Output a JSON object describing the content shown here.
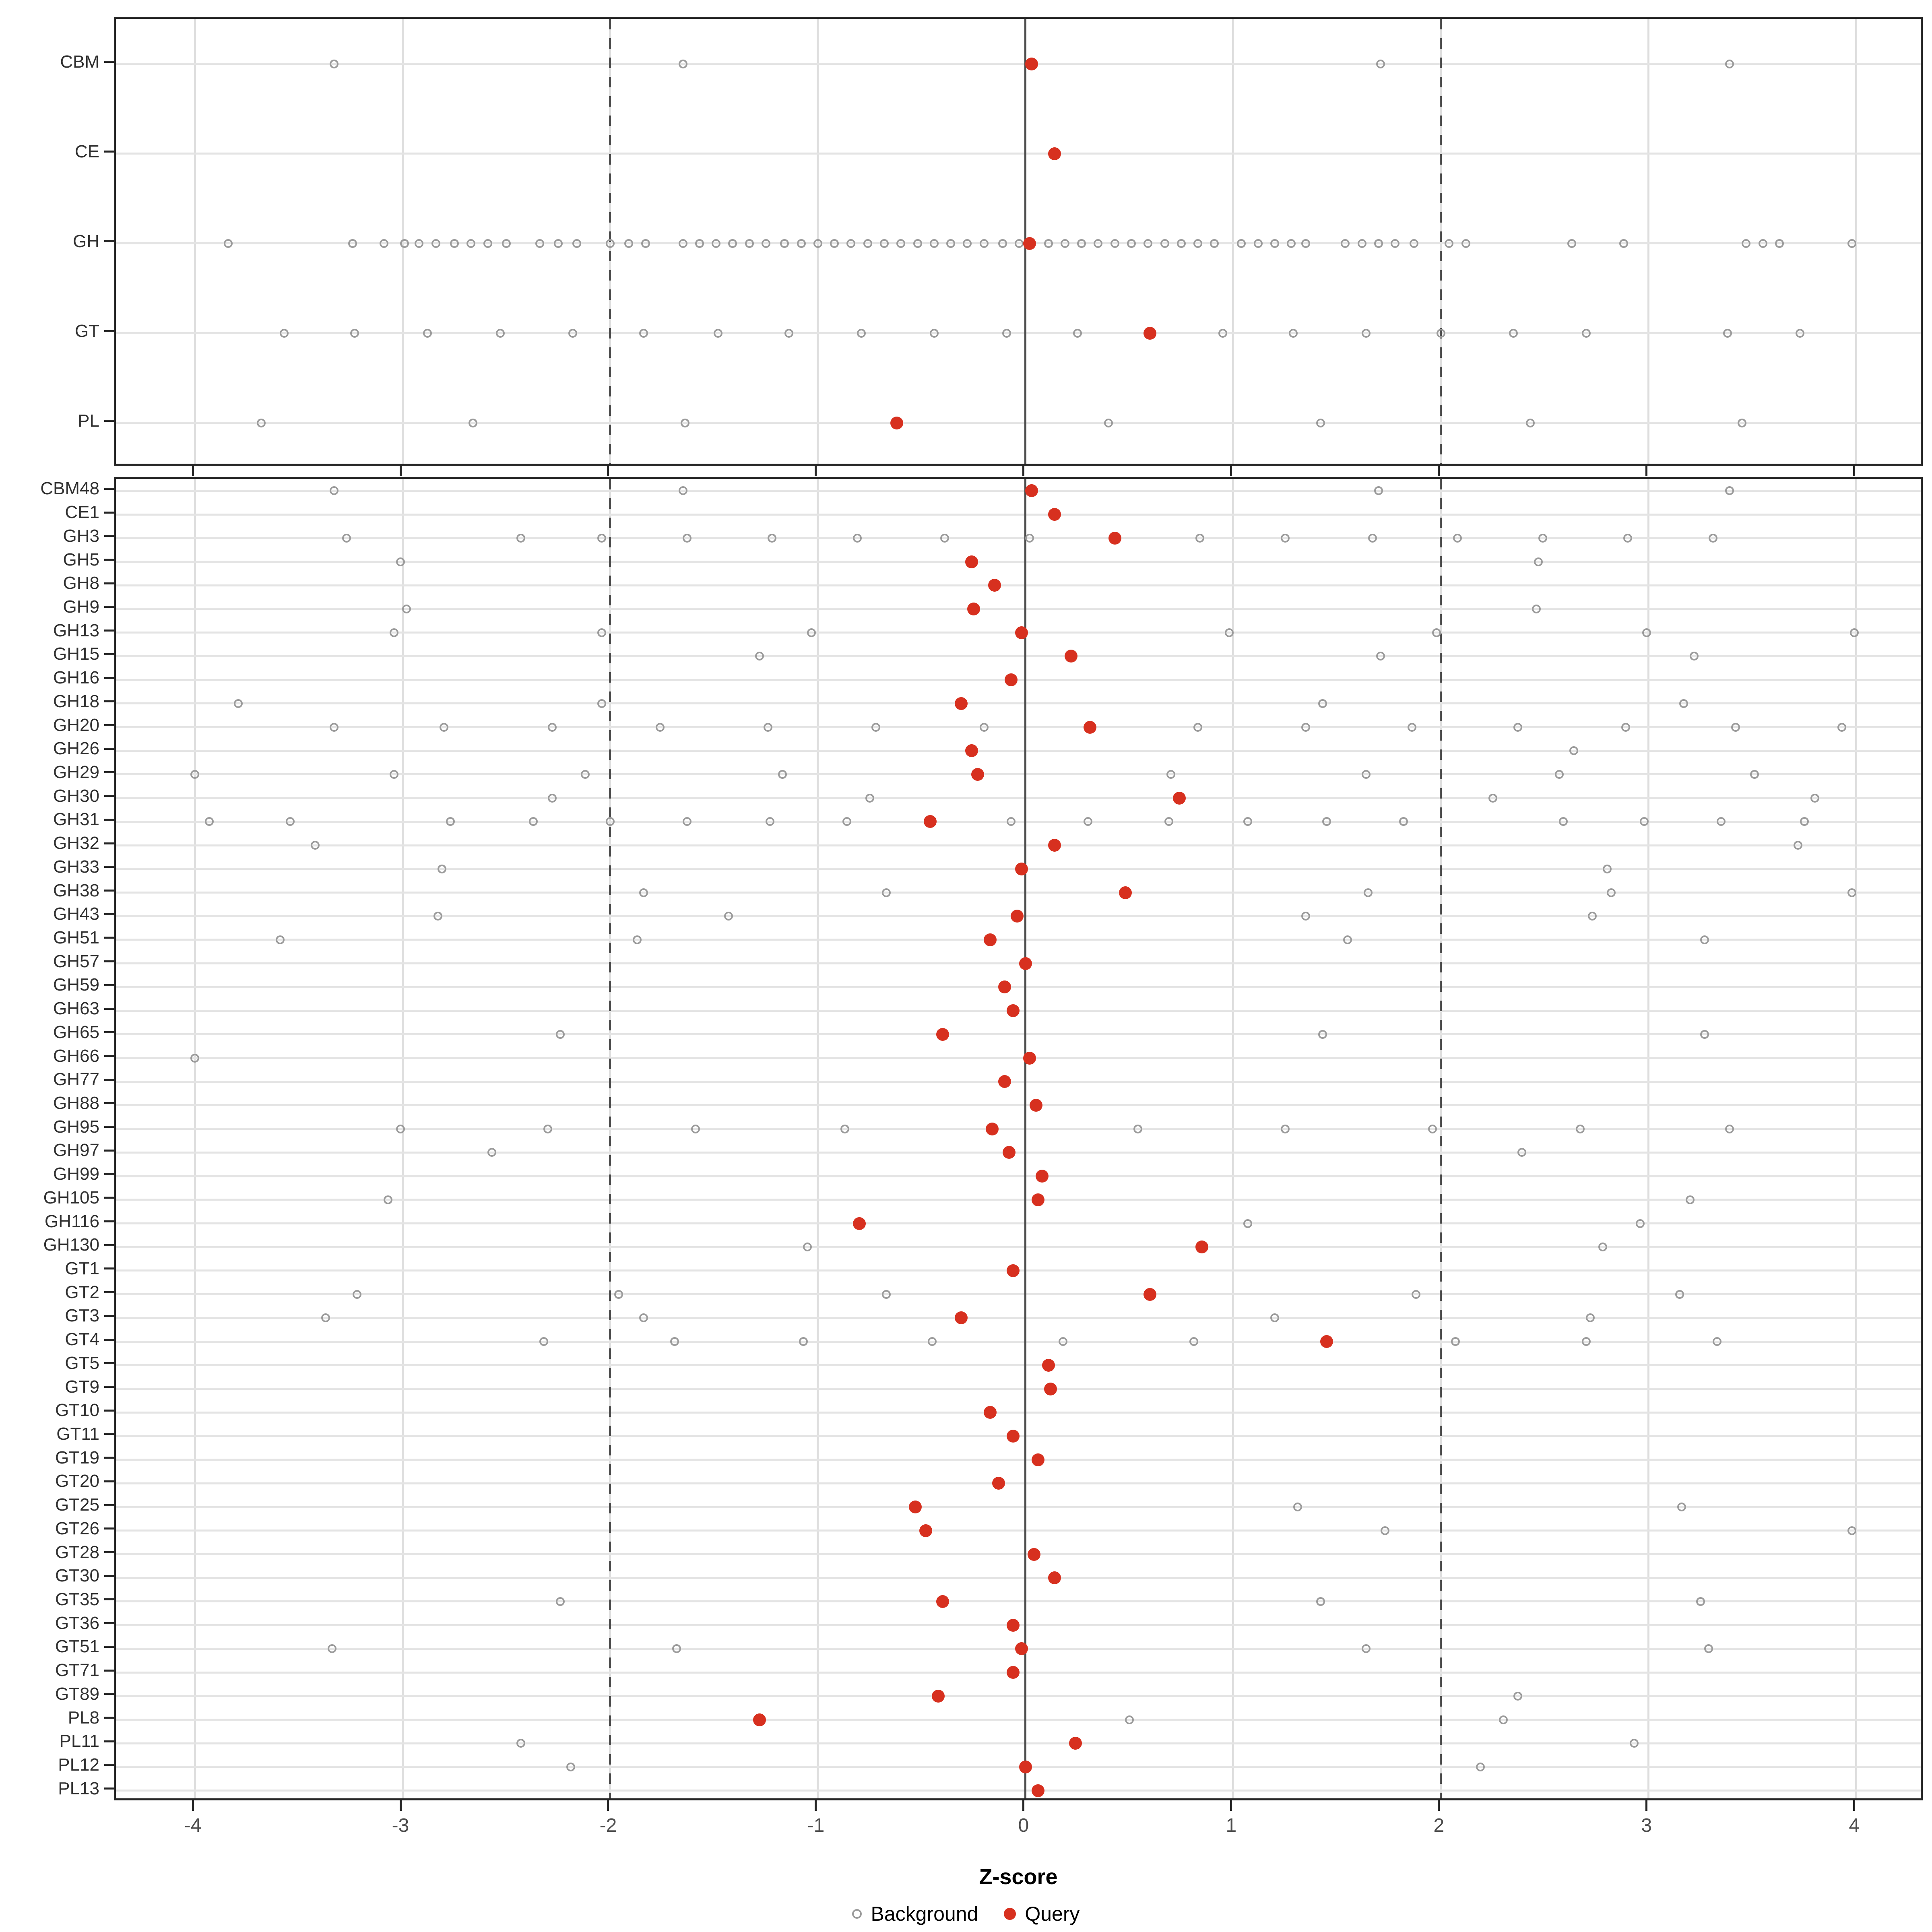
{
  "figure": {
    "xlabel": "Z-score",
    "colors": {
      "query": "#d7301f",
      "background_stroke": "#9b9b9b",
      "grid_light": "#e4e4e4",
      "guide_dark": "#4d4d4d",
      "panel_border": "#262626",
      "axis_text": "#4d4d4d"
    }
  },
  "chart_data": {
    "type": "scatter",
    "title": "",
    "xlabel": "Z-score",
    "ylabel": "",
    "legend": [
      "Background",
      "Query"
    ],
    "legend_position": "bottom",
    "x_axis": {
      "min": -4.38,
      "max": 4.33,
      "ticks": [
        -4,
        -3,
        -2,
        -1,
        0,
        1,
        2,
        3,
        4
      ],
      "guide_solid": [
        0
      ],
      "guide_dashed": [
        -2,
        2
      ],
      "grid": true
    },
    "panels": [
      {
        "name": "class-level",
        "rows": [
          {
            "label": "CBM",
            "query": 0.03,
            "background": [
              -3.33,
              -1.65,
              1.71,
              3.39
            ]
          },
          {
            "label": "CE",
            "query": 0.14,
            "background": []
          },
          {
            "label": "GH",
            "query": 0.02,
            "background": [
              -3.84,
              -3.24,
              -3.09,
              -2.99,
              -2.92,
              -2.84,
              -2.75,
              -2.67,
              -2.59,
              -2.5,
              -2.34,
              -2.25,
              -2.16,
              -2.0,
              -1.91,
              -1.83,
              -1.65,
              -1.57,
              -1.49,
              -1.41,
              -1.33,
              -1.25,
              -1.16,
              -1.08,
              -1.0,
              -0.92,
              -0.84,
              -0.76,
              -0.68,
              -0.6,
              -0.52,
              -0.44,
              -0.36,
              -0.28,
              -0.2,
              -0.11,
              -0.03,
              0.11,
              0.19,
              0.27,
              0.35,
              0.43,
              0.51,
              0.59,
              0.67,
              0.75,
              0.83,
              0.91,
              1.04,
              1.12,
              1.2,
              1.28,
              1.35,
              1.54,
              1.62,
              1.7,
              1.78,
              1.87,
              2.04,
              2.12,
              2.63,
              2.88,
              3.47,
              3.55,
              3.63,
              3.98
            ]
          },
          {
            "label": "GT",
            "query": 0.6,
            "background": [
              -3.57,
              -3.23,
              -2.88,
              -2.53,
              -2.18,
              -1.84,
              -1.48,
              -1.14,
              -0.79,
              -0.44,
              -0.09,
              0.25,
              0.95,
              1.29,
              1.64,
              2.0,
              2.35,
              2.7,
              3.38,
              3.73
            ]
          },
          {
            "label": "PL",
            "query": -0.62,
            "background": [
              -3.68,
              -2.66,
              -1.64,
              0.4,
              1.42,
              2.43,
              3.45
            ]
          }
        ]
      },
      {
        "name": "family-level",
        "rows": [
          {
            "label": "CBM48",
            "query": 0.03,
            "background": [
              -3.33,
              -1.65,
              1.7,
              3.39
            ]
          },
          {
            "label": "CE1",
            "query": 0.14,
            "background": []
          },
          {
            "label": "GH3",
            "query": 0.43,
            "background": [
              -3.27,
              -2.43,
              -2.04,
              -1.63,
              -1.22,
              -0.81,
              -0.39,
              0.02,
              0.84,
              1.25,
              1.67,
              2.08,
              2.49,
              2.9,
              3.31
            ]
          },
          {
            "label": "GH5",
            "query": -0.26,
            "background": [
              -3.01,
              2.47
            ]
          },
          {
            "label": "GH8",
            "query": -0.15,
            "background": []
          },
          {
            "label": "GH9",
            "query": -0.25,
            "background": [
              -2.98,
              2.46
            ]
          },
          {
            "label": "GH13",
            "query": -0.02,
            "background": [
              -3.04,
              -2.04,
              -1.03,
              0.98,
              1.98,
              2.99,
              3.99
            ]
          },
          {
            "label": "GH15",
            "query": 0.22,
            "background": [
              -1.28,
              1.71,
              3.22
            ]
          },
          {
            "label": "GH16",
            "query": -0.07,
            "background": []
          },
          {
            "label": "GH18",
            "query": -0.31,
            "background": [
              -3.79,
              -2.04,
              1.43,
              3.17
            ]
          },
          {
            "label": "GH20",
            "query": 0.31,
            "background": [
              -3.33,
              -2.8,
              -2.28,
              -1.76,
              -1.24,
              -0.72,
              -0.2,
              0.83,
              1.35,
              1.86,
              2.37,
              2.89,
              3.42,
              3.93
            ]
          },
          {
            "label": "GH26",
            "query": -0.26,
            "background": [
              2.64
            ]
          },
          {
            "label": "GH29",
            "query": -0.23,
            "background": [
              -4.0,
              -3.04,
              -2.12,
              -1.17,
              0.7,
              1.64,
              2.57,
              3.51
            ]
          },
          {
            "label": "GH30",
            "query": 0.74,
            "background": [
              -2.28,
              -0.75,
              2.25,
              3.8
            ]
          },
          {
            "label": "GH31",
            "query": -0.46,
            "background": [
              -3.93,
              -3.54,
              -2.77,
              -2.37,
              -2.0,
              -1.63,
              -1.23,
              -0.86,
              -0.07,
              0.3,
              0.69,
              1.07,
              1.45,
              1.82,
              2.59,
              2.98,
              3.35,
              3.75
            ]
          },
          {
            "label": "GH32",
            "query": 0.14,
            "background": [
              -3.42,
              3.72
            ]
          },
          {
            "label": "GH33",
            "query": -0.02,
            "background": [
              -2.81,
              2.8
            ]
          },
          {
            "label": "GH38",
            "query": 0.48,
            "background": [
              -1.84,
              -0.67,
              1.65,
              2.82,
              3.98
            ]
          },
          {
            "label": "GH43",
            "query": -0.04,
            "background": [
              -2.83,
              -1.43,
              1.35,
              2.73
            ]
          },
          {
            "label": "GH51",
            "query": -0.17,
            "background": [
              -3.59,
              -1.87,
              1.55,
              3.27
            ]
          },
          {
            "label": "GH57",
            "query": 0.0,
            "background": []
          },
          {
            "label": "GH59",
            "query": -0.1,
            "background": []
          },
          {
            "label": "GH63",
            "query": -0.06,
            "background": []
          },
          {
            "label": "GH65",
            "query": -0.4,
            "background": [
              -2.24,
              1.43,
              3.27
            ]
          },
          {
            "label": "GH66",
            "query": 0.02,
            "background": [
              -4.0
            ]
          },
          {
            "label": "GH77",
            "query": -0.1,
            "background": []
          },
          {
            "label": "GH88",
            "query": 0.05,
            "background": []
          },
          {
            "label": "GH95",
            "query": -0.16,
            "background": [
              -3.01,
              -2.3,
              -1.59,
              -0.87,
              0.54,
              1.25,
              1.96,
              2.67,
              3.39
            ]
          },
          {
            "label": "GH97",
            "query": -0.08,
            "background": [
              -2.57,
              2.39
            ]
          },
          {
            "label": "GH99",
            "query": 0.08,
            "background": []
          },
          {
            "label": "GH105",
            "query": 0.06,
            "background": [
              -3.07,
              3.2
            ]
          },
          {
            "label": "GH116",
            "query": -0.8,
            "background": [
              1.07,
              2.96
            ]
          },
          {
            "label": "GH130",
            "query": 0.85,
            "background": [
              -1.05,
              2.78
            ]
          },
          {
            "label": "GT1",
            "query": -0.06,
            "background": []
          },
          {
            "label": "GT2",
            "query": 0.6,
            "background": [
              -3.22,
              -1.96,
              -0.67,
              1.88,
              3.15
            ]
          },
          {
            "label": "GT3",
            "query": -0.31,
            "background": [
              -3.37,
              -1.84,
              1.2,
              2.72
            ]
          },
          {
            "label": "GT4",
            "query": 1.45,
            "background": [
              -2.32,
              -1.69,
              -1.07,
              -0.45,
              0.18,
              0.81,
              2.07,
              2.7,
              3.33
            ]
          },
          {
            "label": "GT5",
            "query": 0.11,
            "background": []
          },
          {
            "label": "GT9",
            "query": 0.12,
            "background": []
          },
          {
            "label": "GT10",
            "query": -0.17,
            "background": []
          },
          {
            "label": "GT11",
            "query": -0.06,
            "background": []
          },
          {
            "label": "GT19",
            "query": 0.06,
            "background": []
          },
          {
            "label": "GT20",
            "query": -0.13,
            "background": []
          },
          {
            "label": "GT25",
            "query": -0.53,
            "background": [
              1.31,
              3.16
            ]
          },
          {
            "label": "GT26",
            "query": -0.48,
            "background": [
              1.73,
              3.98
            ]
          },
          {
            "label": "GT28",
            "query": 0.04,
            "background": []
          },
          {
            "label": "GT30",
            "query": 0.14,
            "background": []
          },
          {
            "label": "GT35",
            "query": -0.4,
            "background": [
              -2.24,
              1.42,
              3.25
            ]
          },
          {
            "label": "GT36",
            "query": -0.06,
            "background": []
          },
          {
            "label": "GT51",
            "query": -0.02,
            "background": [
              -3.34,
              -1.68,
              1.64,
              3.29
            ]
          },
          {
            "label": "GT71",
            "query": -0.06,
            "background": []
          },
          {
            "label": "GT89",
            "query": -0.42,
            "background": [
              2.37
            ]
          },
          {
            "label": "PL8",
            "query": -1.28,
            "background": [
              0.5,
              2.3
            ]
          },
          {
            "label": "PL11",
            "query": 0.24,
            "background": [
              -2.43,
              2.93
            ]
          },
          {
            "label": "PL12",
            "query": 0.0,
            "background": [
              -2.19,
              2.19
            ]
          },
          {
            "label": "PL13",
            "query": 0.06,
            "background": []
          }
        ]
      }
    ]
  }
}
